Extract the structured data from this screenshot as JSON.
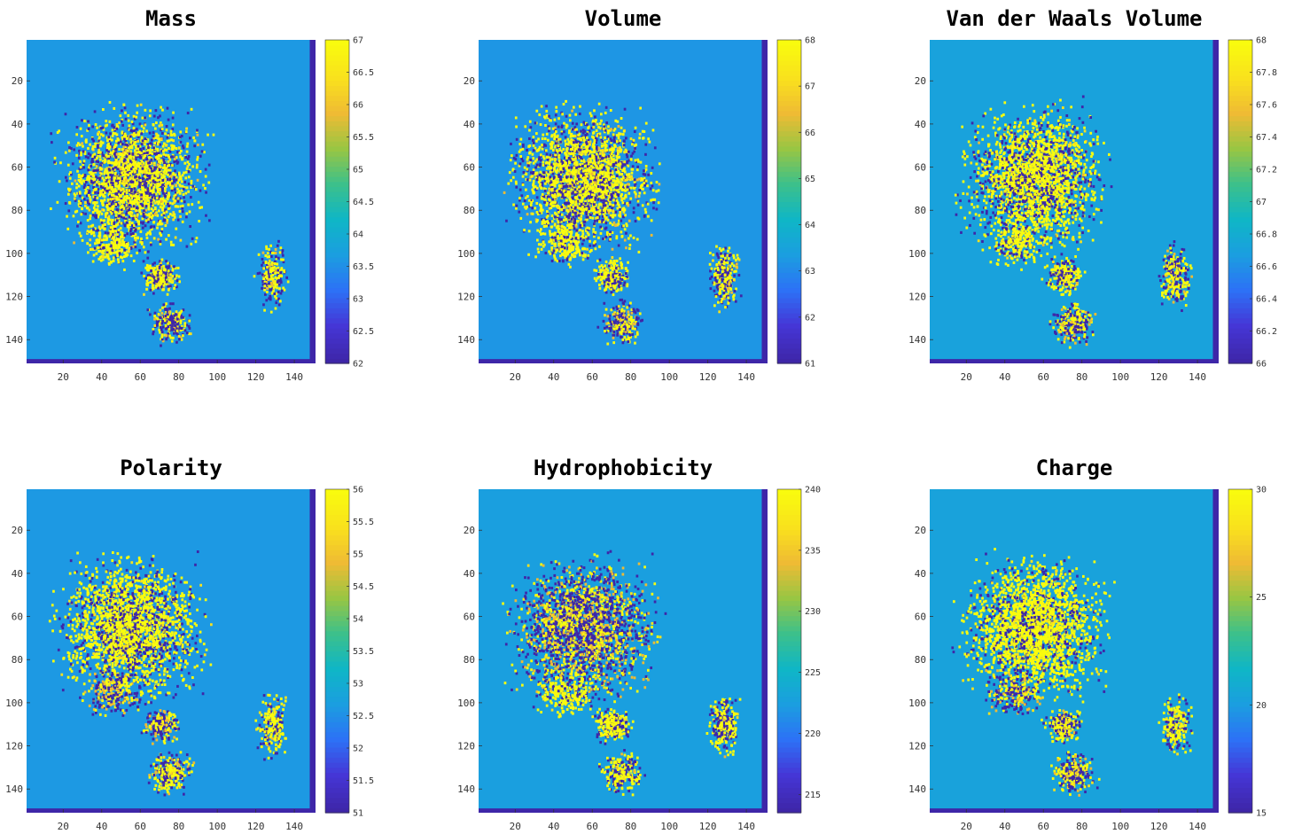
{
  "figure": {
    "background": "#ffffff"
  },
  "colormap": [
    "#3e26a8",
    "#4536d6",
    "#2d71f6",
    "#1b9ee0",
    "#0fb6c6",
    "#3cc08b",
    "#98c643",
    "#efbb34",
    "#f9e11d",
    "#f9fb0e"
  ],
  "chart_data": [
    {
      "type": "heatmap",
      "title": "Mass",
      "xticks": [
        20,
        40,
        60,
        80,
        100,
        120,
        140
      ],
      "yticks": [
        20,
        40,
        60,
        80,
        100,
        120,
        140
      ],
      "xlim": [
        1,
        151
      ],
      "ylim": [
        1,
        151
      ],
      "y_direction": "reverse",
      "clim": [
        62,
        67
      ],
      "colorbar_ticks": [
        "62",
        "62.5",
        "63",
        "63.5",
        "64",
        "64.5",
        "65",
        "65.5",
        "66",
        "66.5",
        "67"
      ],
      "background_value": 63.6,
      "grid": false
    },
    {
      "type": "heatmap",
      "title": "Volume",
      "xticks": [
        20,
        40,
        60,
        80,
        100,
        120,
        140
      ],
      "yticks": [
        20,
        40,
        60,
        80,
        100,
        120,
        140
      ],
      "xlim": [
        1,
        151
      ],
      "ylim": [
        1,
        151
      ],
      "y_direction": "reverse",
      "clim": [
        61,
        68
      ],
      "colorbar_ticks": [
        "61",
        "62",
        "63",
        "64",
        "65",
        "66",
        "67",
        "68"
      ],
      "background_value": 63.2,
      "grid": false
    },
    {
      "type": "heatmap",
      "title": "Van der Waals Volume",
      "xticks": [
        20,
        40,
        60,
        80,
        100,
        120,
        140
      ],
      "yticks": [
        20,
        40,
        60,
        80,
        100,
        120,
        140
      ],
      "xlim": [
        1,
        151
      ],
      "ylim": [
        1,
        151
      ],
      "y_direction": "reverse",
      "clim": [
        66,
        68
      ],
      "colorbar_ticks": [
        "66",
        "66.2",
        "66.4",
        "66.6",
        "66.8",
        "67",
        "67.2",
        "67.4",
        "67.6",
        "67.8",
        "68"
      ],
      "background_value": 66.7,
      "grid": false
    },
    {
      "type": "heatmap",
      "title": "Polarity",
      "xticks": [
        20,
        40,
        60,
        80,
        100,
        120,
        140
      ],
      "yticks": [
        20,
        40,
        60,
        80,
        100,
        120,
        140
      ],
      "xlim": [
        1,
        151
      ],
      "ylim": [
        1,
        151
      ],
      "y_direction": "reverse",
      "clim": [
        51,
        56
      ],
      "colorbar_ticks": [
        "51",
        "51.5",
        "52",
        "52.5",
        "53",
        "53.5",
        "54",
        "54.5",
        "55",
        "55.5",
        "56"
      ],
      "background_value": 52.6,
      "grid": false
    },
    {
      "type": "heatmap",
      "title": "Hydrophobicity",
      "xticks": [
        20,
        40,
        60,
        80,
        100,
        120,
        140
      ],
      "yticks": [
        20,
        40,
        60,
        80,
        100,
        120,
        140
      ],
      "xlim": [
        1,
        151
      ],
      "ylim": [
        1,
        151
      ],
      "y_direction": "reverse",
      "clim": [
        213.5,
        240
      ],
      "colorbar_ticks": [
        "215",
        "220",
        "225",
        "230",
        "235",
        "240"
      ],
      "background_value": 222.5,
      "grid": false
    },
    {
      "type": "heatmap",
      "title": "Charge",
      "xticks": [
        20,
        40,
        60,
        80,
        100,
        120,
        140
      ],
      "yticks": [
        20,
        40,
        60,
        80,
        100,
        120,
        140
      ],
      "xlim": [
        1,
        151
      ],
      "ylim": [
        1,
        151
      ],
      "y_direction": "reverse",
      "clim": [
        15,
        30
      ],
      "colorbar_ticks": [
        "15",
        "20",
        "25",
        "30"
      ],
      "background_value": 20.3,
      "grid": false
    }
  ]
}
